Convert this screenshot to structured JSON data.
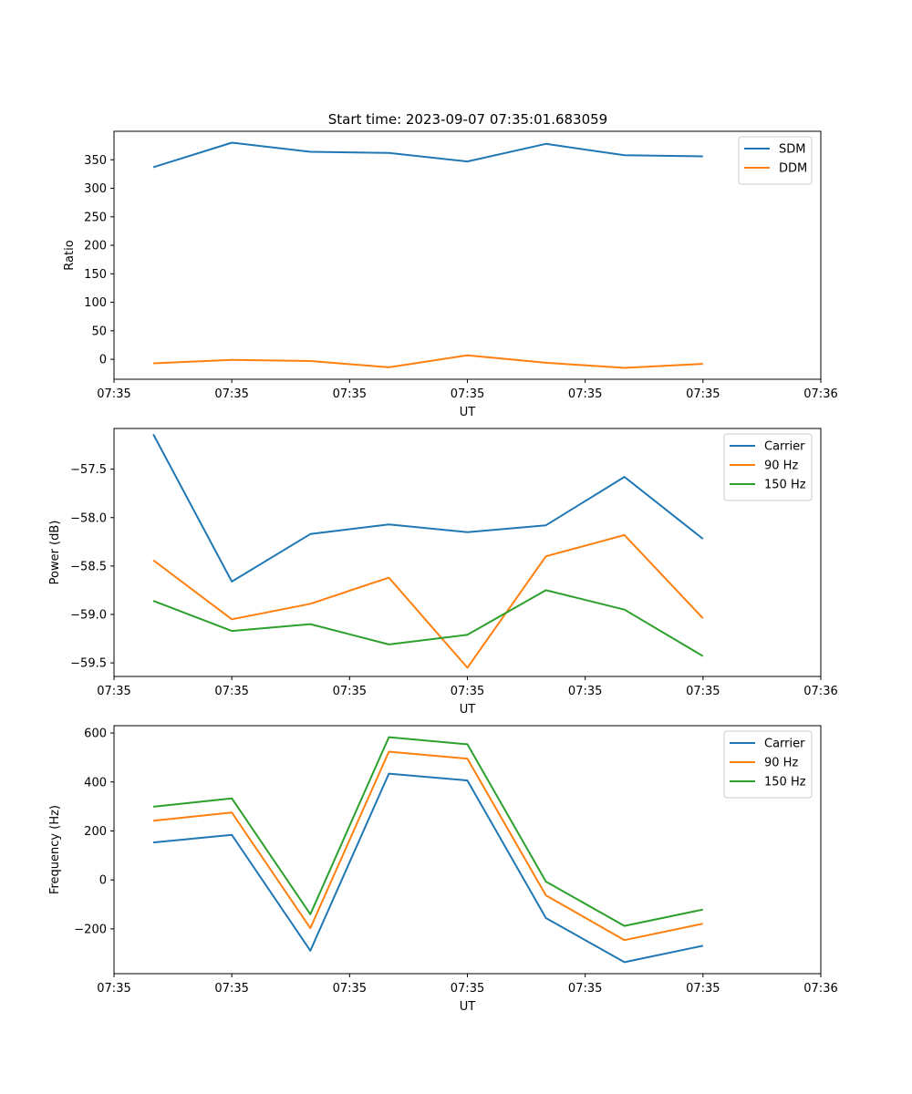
{
  "figure": {
    "title": "Start time: 2023-09-07 07:35:01.683059"
  },
  "chart_data": [
    {
      "type": "line",
      "x": [
        0,
        1,
        2,
        3,
        4,
        5,
        6,
        7
      ],
      "xlim": [
        -0.5,
        8.5
      ],
      "xticks": [
        {
          "pos": -0.5,
          "label": "07:35"
        },
        {
          "pos": 1,
          "label": "07:35"
        },
        {
          "pos": 2.5,
          "label": "07:35"
        },
        {
          "pos": 4,
          "label": "07:35"
        },
        {
          "pos": 5.5,
          "label": "07:35"
        },
        {
          "pos": 7,
          "label": "07:35"
        },
        {
          "pos": 8.5,
          "label": "07:36"
        }
      ],
      "xlabel": "UT",
      "ylabel": "Ratio",
      "ylim": [
        -35,
        400
      ],
      "yticks": [
        {
          "pos": 0,
          "label": "0"
        },
        {
          "pos": 50,
          "label": "50"
        },
        {
          "pos": 100,
          "label": "100"
        },
        {
          "pos": 150,
          "label": "150"
        },
        {
          "pos": 200,
          "label": "200"
        },
        {
          "pos": 250,
          "label": "250"
        },
        {
          "pos": 300,
          "label": "300"
        },
        {
          "pos": 350,
          "label": "350"
        }
      ],
      "legend": "top-right",
      "series": [
        {
          "name": "SDM",
          "color": "#1f77b4",
          "values": [
            337,
            380,
            364,
            362,
            347,
            378,
            358,
            356
          ]
        },
        {
          "name": "DDM",
          "color": "#ff7f0e",
          "values": [
            -7,
            -1,
            -3,
            -14,
            7,
            -6,
            -15,
            -8
          ]
        }
      ]
    },
    {
      "type": "line",
      "x": [
        0,
        1,
        2,
        3,
        4,
        5,
        6,
        7
      ],
      "xlim": [
        -0.5,
        8.5
      ],
      "xticks": [
        {
          "pos": -0.5,
          "label": "07:35"
        },
        {
          "pos": 1,
          "label": "07:35"
        },
        {
          "pos": 2.5,
          "label": "07:35"
        },
        {
          "pos": 4,
          "label": "07:35"
        },
        {
          "pos": 5.5,
          "label": "07:35"
        },
        {
          "pos": 7,
          "label": "07:35"
        },
        {
          "pos": 8.5,
          "label": "07:36"
        }
      ],
      "xlabel": "UT",
      "ylabel": "Power (dB)",
      "ylim": [
        -59.64,
        -57.08
      ],
      "yticks": [
        {
          "pos": -59.5,
          "label": "−59.5"
        },
        {
          "pos": -59.0,
          "label": "−59.0"
        },
        {
          "pos": -58.5,
          "label": "−58.5"
        },
        {
          "pos": -58.0,
          "label": "−58.0"
        },
        {
          "pos": -57.5,
          "label": "−57.5"
        }
      ],
      "legend": "top-right",
      "series": [
        {
          "name": "Carrier",
          "color": "#1f77b4",
          "values": [
            -57.14,
            -58.66,
            -58.17,
            -58.07,
            -58.15,
            -58.08,
            -57.58,
            -58.22
          ]
        },
        {
          "name": "90 Hz",
          "color": "#ff7f0e",
          "values": [
            -58.44,
            -59.05,
            -58.89,
            -58.62,
            -59.55,
            -58.4,
            -58.18,
            -59.04
          ]
        },
        {
          "name": "150 Hz",
          "color": "#2ca02c",
          "values": [
            -58.86,
            -59.17,
            -59.1,
            -59.31,
            -59.21,
            -58.75,
            -58.95,
            -59.43
          ]
        }
      ]
    },
    {
      "type": "line",
      "x": [
        0,
        1,
        2,
        3,
        4,
        5,
        6,
        7
      ],
      "xlim": [
        -0.5,
        8.5
      ],
      "xticks": [
        {
          "pos": -0.5,
          "label": "07:35"
        },
        {
          "pos": 1,
          "label": "07:35"
        },
        {
          "pos": 2.5,
          "label": "07:35"
        },
        {
          "pos": 4,
          "label": "07:35"
        },
        {
          "pos": 5.5,
          "label": "07:35"
        },
        {
          "pos": 7,
          "label": "07:35"
        },
        {
          "pos": 8.5,
          "label": "07:36"
        }
      ],
      "xlabel": "UT",
      "ylabel": "Frequency (Hz)",
      "ylim": [
        -383,
        630
      ],
      "yticks": [
        {
          "pos": -200,
          "label": "−200"
        },
        {
          "pos": 0,
          "label": "0"
        },
        {
          "pos": 200,
          "label": "200"
        },
        {
          "pos": 400,
          "label": "400"
        },
        {
          "pos": 600,
          "label": "600"
        }
      ],
      "legend": "top-right",
      "series": [
        {
          "name": "Carrier",
          "color": "#1f77b4",
          "values": [
            153,
            184,
            -289,
            434,
            406,
            -156,
            -336,
            -269
          ]
        },
        {
          "name": "90 Hz",
          "color": "#ff7f0e",
          "values": [
            242,
            275,
            -197,
            524,
            495,
            -63,
            -246,
            -179
          ]
        },
        {
          "name": "150 Hz",
          "color": "#2ca02c",
          "values": [
            299,
            333,
            -140,
            583,
            554,
            -7,
            -188,
            -121
          ]
        }
      ]
    }
  ]
}
